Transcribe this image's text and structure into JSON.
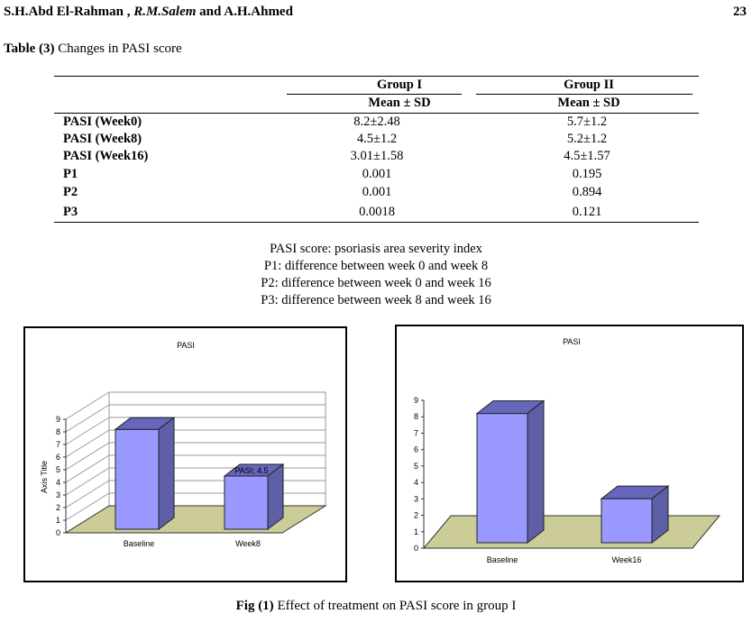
{
  "header": {
    "authors_part1": "S.H.Abd El-Rahman",
    "authors_sep1": " , ",
    "authors_em": "R.M.Salem",
    "authors_rest": " and A.H.Ahmed",
    "page_number": "23"
  },
  "table": {
    "title_bold": "Table (3)",
    "title_rest": " Changes in PASI score",
    "group1": "Group I",
    "group2": "Group II",
    "stat1": "Mean ± SD",
    "stat2": "Mean ± SD",
    "rows": [
      {
        "label": "PASI (Week0)",
        "g1": "8.2±2.48",
        "g2": "5.7±1.2"
      },
      {
        "label": "PASI (Week8)",
        "g1": "4.5±1.2",
        "g2": "5.2±1.2"
      },
      {
        "label": "PASI (Week16)",
        "g1": "3.01±1.58",
        "g2": "4.5±1.57"
      },
      {
        "label": "P1",
        "g1": "0.001",
        "g2": "0.195"
      },
      {
        "label": "P2",
        "g1": "0.001",
        "g2": "0.894"
      },
      {
        "label": "P3",
        "g1": "0.0018",
        "g2": "0.121"
      }
    ]
  },
  "notes": [
    "PASI score: psoriasis area severity index",
    "P1: difference between week 0 and week 8",
    "P2: difference between week 0 and week 16",
    "P3: difference between week 8 and week 16"
  ],
  "chart_data": [
    {
      "type": "bar",
      "title": "PASI",
      "ylabel": "Axis Title",
      "xlabel": "",
      "categories": [
        "Baseline",
        "Week8"
      ],
      "values": [
        8.2,
        4.5
      ],
      "ylim": [
        0,
        9
      ],
      "yticks": [
        "0",
        "1",
        "2",
        "3",
        "4",
        "5",
        "6",
        "7",
        "8",
        "9"
      ],
      "data_labels": [
        "",
        "PASI; 4.5"
      ],
      "bar_color": "#9999ff",
      "floor_color": "#cccc99",
      "grid": true
    },
    {
      "type": "bar",
      "title": "PASI",
      "ylabel": "",
      "xlabel": "",
      "categories": [
        "Baseline",
        "Week16"
      ],
      "values": [
        8.2,
        3.01
      ],
      "ylim": [
        0,
        9
      ],
      "yticks": [
        "0",
        "1",
        "2",
        "3",
        "4",
        "5",
        "6",
        "7",
        "8",
        "9"
      ],
      "data_labels": [
        "",
        ""
      ],
      "bar_color": "#9999ff",
      "floor_color": "#cccc99",
      "grid": false
    }
  ],
  "caption": {
    "bold": "Fig (1)",
    "rest": " Effect of treatment on PASI score in group I"
  }
}
